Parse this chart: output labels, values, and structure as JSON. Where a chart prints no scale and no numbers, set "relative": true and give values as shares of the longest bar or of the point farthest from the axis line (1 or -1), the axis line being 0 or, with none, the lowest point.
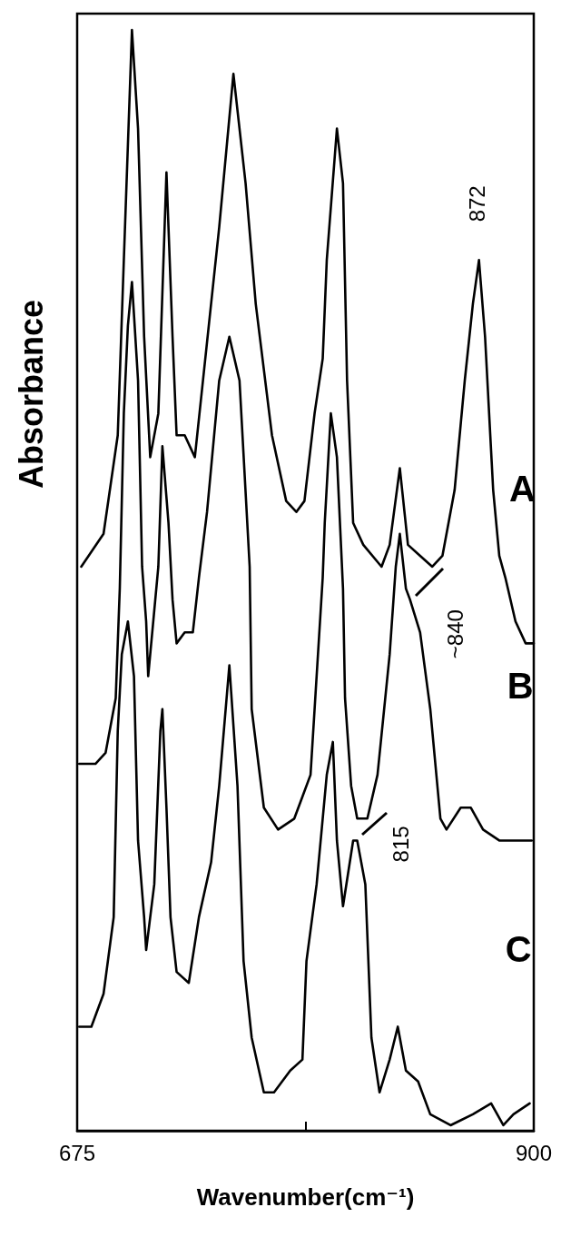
{
  "chart_data": {
    "type": "line",
    "relative": true,
    "xlabel": "Wavenumber(cm⁻¹)",
    "ylabel": "Absorbance",
    "xlim": [
      675,
      900
    ],
    "xticks": [
      675,
      {
        "value": 787.5,
        "label": null
      },
      900
    ],
    "grid": false,
    "marker": "none",
    "line_style": "solid",
    "annotations": [
      {
        "text": "872",
        "x": 872,
        "y": 0.79
      },
      {
        "text": "~840",
        "x": 839,
        "y": 0.48
      },
      {
        "text": "815",
        "x": 813,
        "y": 0.26
      }
    ],
    "series": [
      {
        "name": "A",
        "color": "#000000",
        "x": [
          677,
          688,
          695,
          698,
          702,
          705,
          708,
          711,
          715,
          719,
          722,
          724,
          728,
          733,
          737,
          745,
          752,
          758,
          763,
          771,
          778,
          783,
          787,
          792,
          796,
          798,
          803,
          806,
          808,
          811,
          816,
          825,
          829,
          834,
          838,
          844,
          850,
          855,
          861,
          866,
          870,
          873,
          876,
          880,
          883,
          886,
          891,
          896,
          900
        ],
        "values": [
          0.51,
          0.54,
          0.63,
          0.79,
          1.0,
          0.91,
          0.72,
          0.61,
          0.65,
          0.87,
          0.72,
          0.63,
          0.63,
          0.61,
          0.68,
          0.82,
          0.96,
          0.86,
          0.75,
          0.63,
          0.57,
          0.56,
          0.57,
          0.65,
          0.7,
          0.79,
          0.91,
          0.86,
          0.68,
          0.55,
          0.53,
          0.51,
          0.53,
          0.6,
          0.53,
          0.52,
          0.51,
          0.52,
          0.58,
          0.68,
          0.75,
          0.79,
          0.72,
          0.58,
          0.52,
          0.5,
          0.46,
          0.44,
          0.44
        ]
      },
      {
        "name": "B",
        "color": "#000000",
        "x": [
          676,
          684,
          689,
          694,
          696,
          698,
          700,
          702,
          705,
          707,
          709,
          710,
          715,
          717,
          720,
          722,
          724,
          728,
          732,
          735,
          739,
          745,
          750,
          755,
          760,
          761,
          767,
          774,
          782,
          786,
          790,
          796,
          797,
          800,
          803,
          806,
          807,
          810,
          813,
          818,
          823,
          829,
          832,
          834,
          837,
          839,
          844,
          849,
          854,
          857,
          864,
          869,
          875,
          883,
          887,
          892,
          899
        ],
        "values": [
          0.33,
          0.33,
          0.34,
          0.39,
          0.49,
          0.65,
          0.73,
          0.77,
          0.68,
          0.51,
          0.46,
          0.41,
          0.51,
          0.62,
          0.55,
          0.48,
          0.44,
          0.45,
          0.45,
          0.5,
          0.56,
          0.68,
          0.72,
          0.68,
          0.51,
          0.38,
          0.29,
          0.27,
          0.28,
          0.3,
          0.32,
          0.5,
          0.55,
          0.65,
          0.61,
          0.49,
          0.39,
          0.31,
          0.28,
          0.28,
          0.32,
          0.43,
          0.51,
          0.54,
          0.49,
          0.48,
          0.45,
          0.38,
          0.28,
          0.27,
          0.29,
          0.29,
          0.27,
          0.26,
          0.26,
          0.26,
          0.26
        ]
      },
      {
        "name": "C",
        "color": "#000000",
        "x": [
          676,
          682,
          688,
          693,
          695,
          697,
          700,
          703,
          705,
          708,
          709,
          713,
          716,
          717,
          719,
          721,
          724,
          730,
          735,
          741,
          745,
          750,
          754,
          757,
          761,
          767,
          772,
          780,
          786,
          788,
          793,
          798,
          801,
          803,
          806,
          811,
          813,
          817,
          820,
          824,
          829,
          833,
          837,
          843,
          849,
          859,
          870,
          879,
          885,
          890,
          898
        ],
        "values": [
          0.09,
          0.09,
          0.12,
          0.19,
          0.36,
          0.43,
          0.46,
          0.41,
          0.26,
          0.19,
          0.16,
          0.22,
          0.36,
          0.38,
          0.29,
          0.19,
          0.14,
          0.13,
          0.19,
          0.24,
          0.31,
          0.42,
          0.31,
          0.15,
          0.08,
          0.03,
          0.03,
          0.05,
          0.06,
          0.15,
          0.22,
          0.32,
          0.35,
          0.26,
          0.2,
          0.26,
          0.26,
          0.22,
          0.08,
          0.03,
          0.06,
          0.09,
          0.05,
          0.04,
          0.01,
          0,
          0.01,
          0.02,
          0,
          0.01,
          0.02
        ]
      }
    ]
  }
}
